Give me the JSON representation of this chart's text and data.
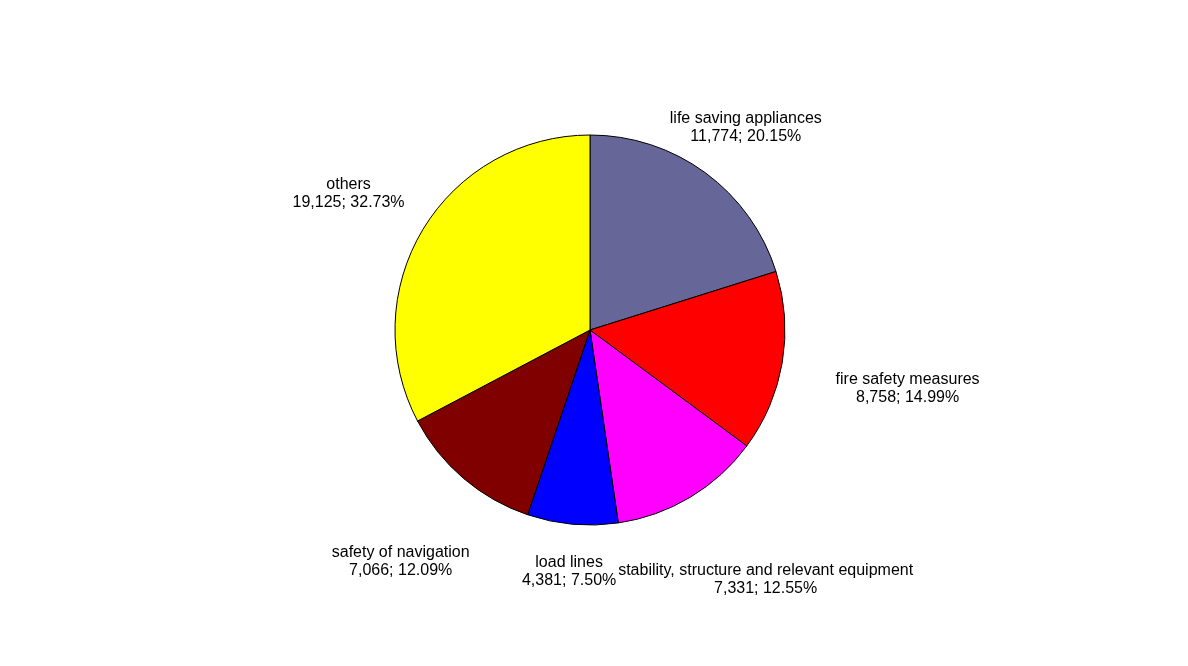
{
  "chart_data": {
    "type": "pie",
    "categories": [
      "life saving appliances",
      "fire safety measures",
      "stability, structure and relevant equipment",
      "load lines",
      "safety of navigation",
      "others"
    ],
    "values": [
      11774,
      8758,
      7331,
      4381,
      7066,
      19125
    ],
    "colors": [
      "#666699",
      "#ff0000",
      "#ff00ff",
      "#0000ff",
      "#800000",
      "#ffff00"
    ],
    "value_labels": [
      "11,774; 20.15%",
      "8,758; 14.99%",
      "7,331; 12.55%",
      "4,381; 7.50%",
      "7,066; 12.09%",
      "19,125; 32.73%"
    ],
    "legend": false
  }
}
